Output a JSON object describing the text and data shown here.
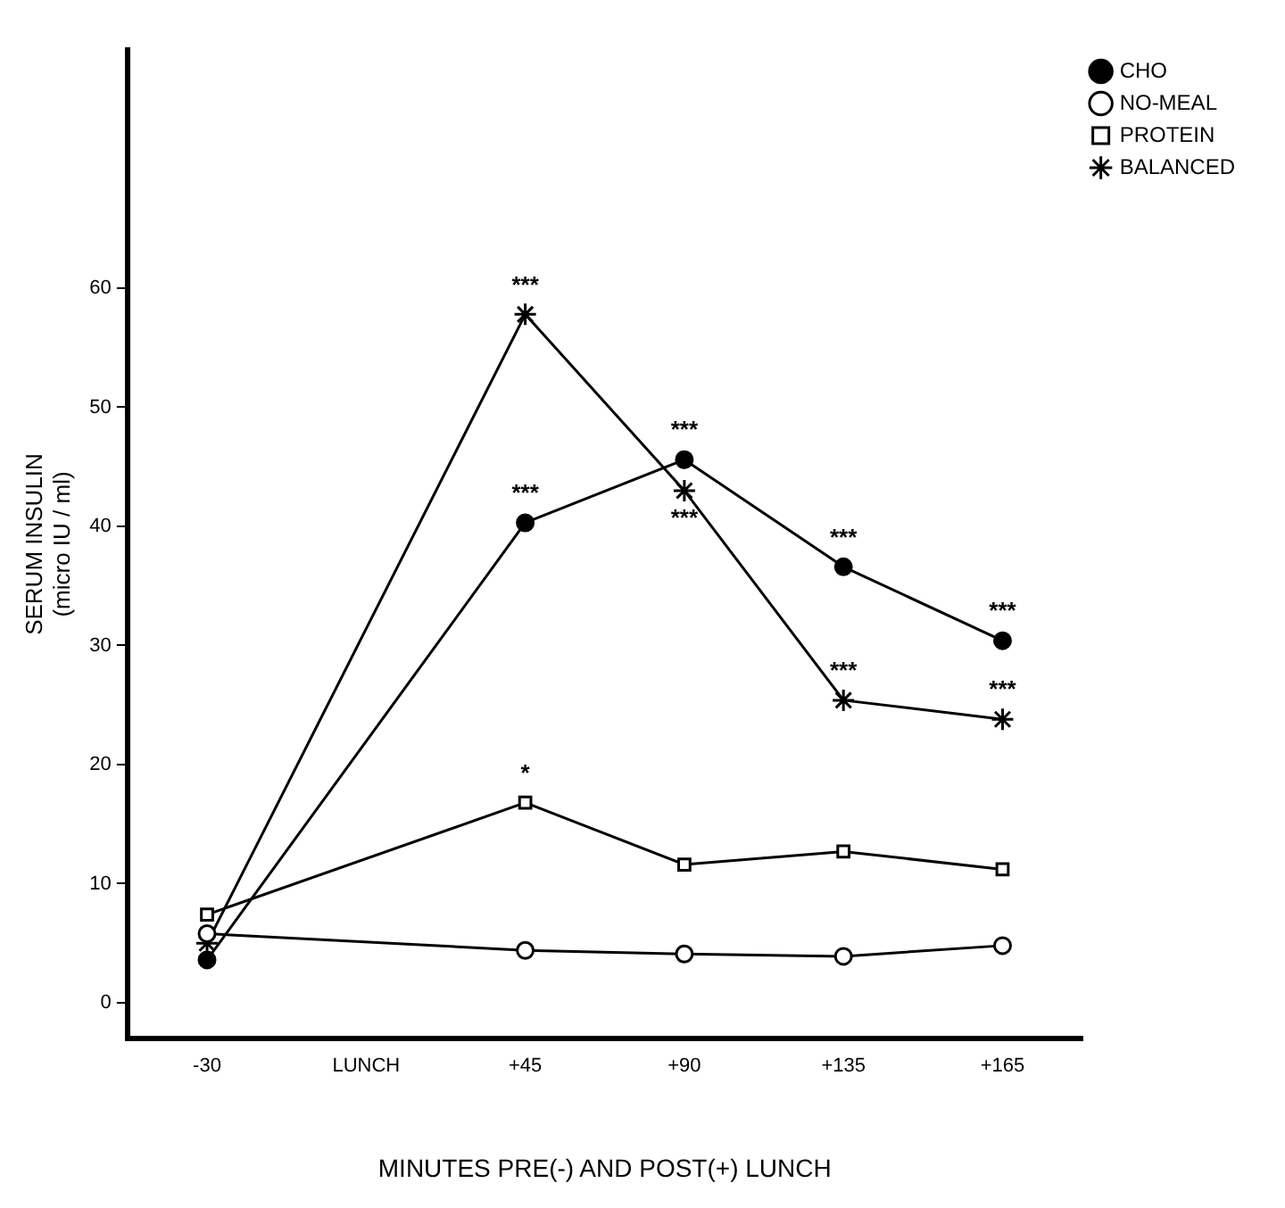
{
  "chart_data": {
    "type": "line",
    "xlabel": "MINUTES PRE(-) AND POST(+) LUNCH",
    "ylabel": "SERUM INSULIN\n(micro IU / ml)",
    "categories": [
      "-30",
      "LUNCH",
      "+45",
      "+90",
      "+135",
      "+165"
    ],
    "ylim": [
      -3,
      80
    ],
    "yticks": [
      0,
      10,
      20,
      30,
      40,
      50,
      60
    ],
    "grid": false,
    "legend": "top right",
    "line_style": "solid",
    "series": [
      {
        "name": "CHO",
        "color": "#000000",
        "marker": "circle",
        "values": [
          3.6,
          null,
          40.3,
          45.6,
          36.6,
          30.4
        ]
      },
      {
        "name": "NO-MEAL",
        "color": "#ffffff",
        "marker": "circle",
        "values": [
          5.8,
          null,
          4.4,
          4.1,
          3.9,
          4.8
        ]
      },
      {
        "name": "PROTEIN",
        "color": "#ffffff",
        "marker": "square",
        "values": [
          7.4,
          null,
          16.8,
          11.6,
          12.7,
          11.2
        ]
      },
      {
        "name": "BALANCED",
        "color": "#000000",
        "marker": "cross",
        "values": [
          5.0,
          null,
          57.8,
          43.0,
          25.4,
          23.8
        ]
      }
    ],
    "annotations": [
      {
        "text": "***",
        "x": "+45",
        "y": 57.8
      },
      {
        "text": "***",
        "x": "+45",
        "y": 40.3
      },
      {
        "text": "*",
        "x": "+45",
        "y": 16.8
      },
      {
        "text": "***",
        "x": "+90",
        "y": 45.6
      },
      {
        "text": "***",
        "x": "+90",
        "y": 43.0
      },
      {
        "text": "***",
        "x": "+135",
        "y": 36.6
      },
      {
        "text": "***",
        "x": "+135",
        "y": 25.4
      },
      {
        "text": "***",
        "x": "+165",
        "y": 30.4
      },
      {
        "text": "***",
        "x": "+165",
        "y": 23.8
      }
    ]
  }
}
